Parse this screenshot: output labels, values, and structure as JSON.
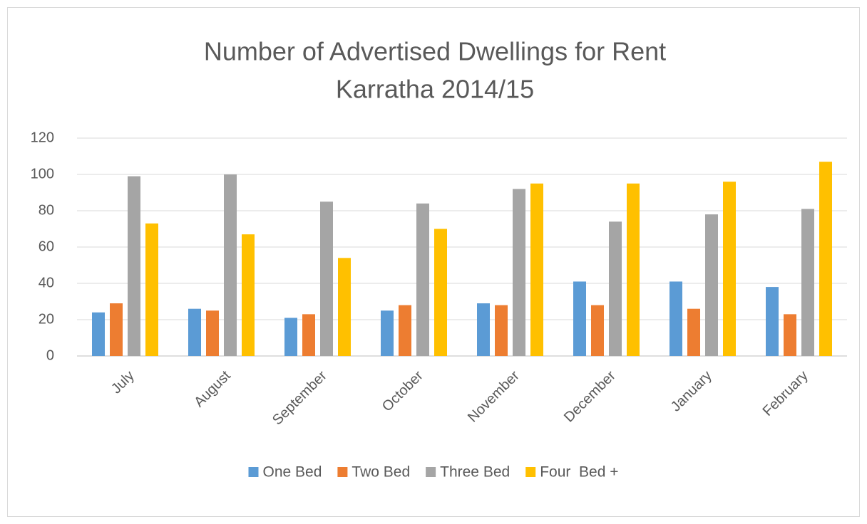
{
  "chart_data": {
    "type": "bar",
    "title": [
      "Number of Advertised Dwellings for Rent",
      "Karratha 2014/15"
    ],
    "categories": [
      "July",
      "August",
      "September",
      "October",
      "November",
      "December",
      "January",
      "February"
    ],
    "series": [
      {
        "name": "One Bed",
        "color": "#5b9bd5",
        "values": [
          24,
          26,
          21,
          25,
          29,
          41,
          41,
          38
        ]
      },
      {
        "name": "Two Bed",
        "color": "#ed7d31",
        "values": [
          29,
          25,
          23,
          28,
          28,
          28,
          26,
          23
        ]
      },
      {
        "name": "Three Bed",
        "color": "#a5a5a5",
        "values": [
          99,
          100,
          85,
          84,
          92,
          74,
          78,
          81
        ]
      },
      {
        "name": "Four  Bed +",
        "color": "#ffc000",
        "values": [
          73,
          67,
          54,
          70,
          95,
          95,
          96,
          107
        ]
      }
    ],
    "ylim": [
      0,
      120
    ],
    "yticks": [
      0,
      20,
      40,
      60,
      80,
      100,
      120
    ],
    "grid": true,
    "legend": "bottom"
  }
}
